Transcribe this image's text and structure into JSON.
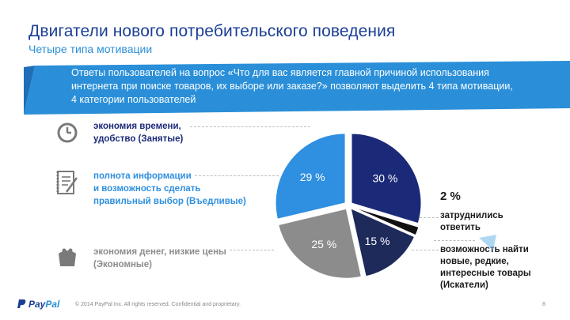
{
  "header": {
    "title": "Двигатели нового потребительского поведения",
    "subtitle": "Четыре типа мотивации"
  },
  "banner": {
    "text": "Ответы пользователей на вопрос  «Что для вас является главной причиной использования интернета при поиске товаров, их выборе или заказе?» позволяют выделить 4 типа мотивации, 4 категории пользователей"
  },
  "motives": [
    {
      "icon": "clock-icon",
      "label_a": "экономия времени,",
      "label_b": "удобство (Занятые)"
    },
    {
      "icon": "checklist-icon",
      "label_a": "полнота информации",
      "label_b": "и возможность сделать",
      "label_c": "правильный выбор (Въедливые)"
    },
    {
      "icon": "wallet-icon",
      "label_a": "экономия денег,  низкие цены",
      "label_b": "(Экономные)"
    }
  ],
  "side_labels": {
    "pct_2": "2 %",
    "hard_a": "затруднились",
    "hard_b": "ответить",
    "seek_a": "возможность найти",
    "seek_b": "новые, редкие,",
    "seek_c": "интересные товары",
    "seek_d": "(Искатели)"
  },
  "chart_data": {
    "type": "pie",
    "slices": [
      {
        "label": "30 %",
        "value": 30,
        "color": "#1b2a78"
      },
      {
        "label": "2 %",
        "value": 2,
        "color": "#111111"
      },
      {
        "label": "15 %",
        "value": 15,
        "color": "#1d2a5a"
      },
      {
        "label": "25 %",
        "value": 25,
        "color": "#8c8c8c"
      },
      {
        "label": "29 %",
        "value": 29,
        "color": "#2f8fe0"
      }
    ]
  },
  "colors": {
    "accent": "#1b3f94",
    "light_accent": "#2a8fd8",
    "motive_1": "#1b2a78",
    "motive_2": "#2f8fe0",
    "motive_3": "#8c8c8c"
  },
  "footer": {
    "logo_a": "Pay",
    "logo_b": "Pal",
    "text": "© 2014 PayPal Inc. All rights reserved. Confidential and proprietary.",
    "page": "8"
  }
}
